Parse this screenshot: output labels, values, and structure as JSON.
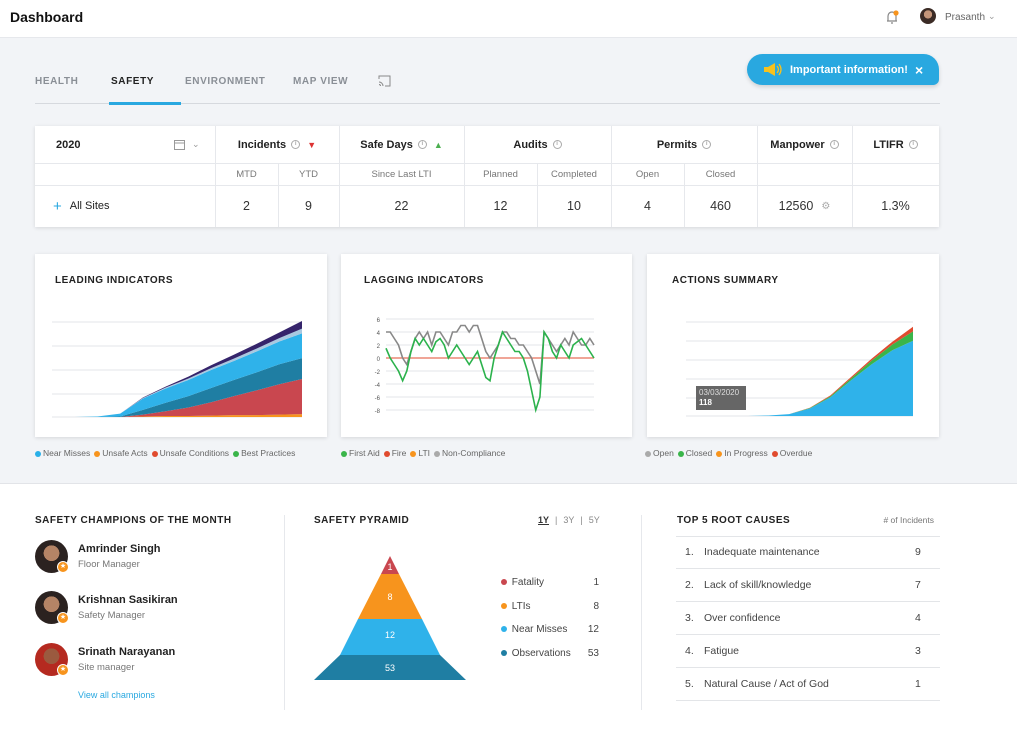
{
  "header": {
    "title": "Dashboard",
    "user": "Prasanth",
    "bell_icon": "bell-icon",
    "notification_color": "#f7941d"
  },
  "tabs": [
    {
      "label": "HEALTH"
    },
    {
      "label": "SAFETY",
      "active": true
    },
    {
      "label": "ENVIRONMENT"
    },
    {
      "label": "MAP VIEW"
    }
  ],
  "banner": {
    "text": "Important information!",
    "close": "×",
    "color": "#29a8e0"
  },
  "stats": {
    "year": "2020",
    "headers": {
      "incidents": "Incidents",
      "safe_days": "Safe Days",
      "audits": "Audits",
      "permits": "Permits",
      "manpower": "Manpower",
      "ltifr": "LTIFR"
    },
    "subheaders": {
      "mtd": "MTD",
      "ytd": "YTD",
      "since": "Since Last LTI",
      "planned": "Planned",
      "completed": "Completed",
      "open": "Open",
      "closed": "Closed"
    },
    "row": {
      "label": "All Sites",
      "mtd": "2",
      "ytd": "9",
      "safe_days": "22",
      "planned": "12",
      "completed": "10",
      "open": "4",
      "closed": "460",
      "manpower": "12560",
      "ltifr": "1.3%"
    }
  },
  "charts": {
    "leading": {
      "title": "LEADING INDICATORS",
      "legend": [
        {
          "label": "Near Misses",
          "color": "#29b0e8"
        },
        {
          "label": "Unsafe Acts",
          "color": "#f7941d"
        },
        {
          "label": "Unsafe Conditions",
          "color": "#e04b2f"
        },
        {
          "label": "Best Practices",
          "color": "#3ab54a"
        }
      ]
    },
    "lagging": {
      "title": "LAGGING INDICATORS",
      "legend": [
        {
          "label": "First Aid",
          "color": "#3ab54a"
        },
        {
          "label": "Fire",
          "color": "#e04b2f"
        },
        {
          "label": "LTI",
          "color": "#f7941d"
        },
        {
          "label": "Non-Compliance",
          "color": "#aaaaaa"
        }
      ]
    },
    "actions": {
      "title": "ACTIONS SUMMARY",
      "tooltip_date": "03/03/2020",
      "tooltip_value": "118",
      "legend": [
        {
          "label": "Open",
          "color": "#aaaaaa"
        },
        {
          "label": "Closed",
          "color": "#3ab54a"
        },
        {
          "label": "In Progress",
          "color": "#f7941d"
        },
        {
          "label": "Overdue",
          "color": "#e04b2f"
        }
      ]
    }
  },
  "chart_data": [
    {
      "type": "area",
      "stacked": true,
      "ylim": [
        0,
        100
      ],
      "x": [
        1,
        2,
        3,
        4,
        5,
        6,
        7,
        8,
        9,
        10,
        11,
        12
      ],
      "series": [
        {
          "color": "#f7941d",
          "values": [
            0,
            0,
            0,
            0,
            0.5,
            1,
            1,
            1.5,
            2,
            2,
            2.5,
            3
          ]
        },
        {
          "color": "#c9474f",
          "values": [
            0,
            0,
            0,
            0,
            2,
            5,
            9,
            14,
            20,
            26,
            32,
            37
          ]
        },
        {
          "color": "#1f7ea3",
          "values": [
            0,
            0,
            0,
            0.5,
            5,
            9,
            12,
            15,
            17,
            19,
            21,
            22
          ]
        },
        {
          "color": "#2fb2ea",
          "values": [
            0,
            0,
            0.5,
            3,
            12,
            15,
            17,
            19,
            20,
            22,
            24,
            26
          ]
        },
        {
          "color": "#a9c8e0",
          "values": [
            0,
            0,
            0,
            0,
            0.5,
            1,
            1.5,
            2,
            2.5,
            3,
            3.5,
            5
          ]
        },
        {
          "color": "#35246b",
          "values": [
            0,
            0,
            0,
            0,
            0.5,
            1,
            2,
            3,
            4,
            5,
            6,
            8
          ]
        }
      ]
    },
    {
      "type": "line",
      "ylim": [
        -8,
        6
      ],
      "yticks": [
        "6",
        "4",
        "2",
        "0",
        "-2",
        "-4",
        "-6",
        "-8"
      ],
      "series": [
        {
          "color": "#888888",
          "values": [
            4,
            4,
            3,
            2,
            0,
            -1,
            1,
            3,
            4,
            3,
            4,
            2,
            4,
            4,
            3,
            2,
            4,
            4,
            5,
            5,
            4,
            5,
            5,
            3,
            1,
            0,
            1,
            2,
            4,
            4,
            3,
            3,
            2,
            2,
            1,
            0,
            -2,
            -4,
            4,
            3,
            2,
            1,
            2,
            3,
            2,
            4,
            3,
            2,
            2,
            3,
            2
          ]
        },
        {
          "color": "#2bb24c",
          "values": [
            1.5,
            0,
            -1,
            -2,
            -3.5,
            -2,
            1,
            3,
            2,
            3,
            2,
            1,
            2.5,
            3,
            2,
            0,
            1,
            2,
            1,
            0,
            -1,
            0,
            1,
            -1,
            -3,
            -3.5,
            0,
            2,
            4,
            3,
            2,
            1,
            1,
            0,
            -2,
            -5,
            -8,
            -6,
            4,
            3,
            1,
            0,
            2,
            1,
            0,
            2,
            2.5,
            3,
            2,
            1,
            0
          ]
        }
      ],
      "reference_line": {
        "value": 0,
        "color": "#e04b2f"
      }
    },
    {
      "type": "area",
      "stacked": true,
      "ylim": [
        0,
        100
      ],
      "x": [
        1,
        2,
        3,
        4,
        5,
        6,
        7,
        8,
        9,
        10,
        11,
        12
      ],
      "series": [
        {
          "color": "#2fb2ea",
          "values": [
            0,
            0,
            0,
            0,
            0.5,
            2,
            8,
            20,
            38,
            55,
            70,
            80
          ]
        },
        {
          "color": "#3ab54a",
          "values": [
            0,
            0,
            0,
            0,
            0,
            0,
            0.5,
            1,
            2,
            4,
            6,
            10
          ]
        },
        {
          "color": "#e04b2f",
          "values": [
            0,
            0,
            0,
            0,
            0,
            0,
            0.3,
            1,
            1.5,
            2,
            3,
            5
          ]
        }
      ]
    }
  ],
  "champions": {
    "title": "SAFETY CHAMPIONS OF THE MONTH",
    "people": [
      {
        "name": "Amrinder Singh",
        "role": "Floor Manager"
      },
      {
        "name": "Krishnan Sasikiran",
        "role": "Safety Manager"
      },
      {
        "name": "Srinath Narayanan",
        "role": "Site manager"
      }
    ],
    "link": "View all champions"
  },
  "pyramid": {
    "title": "SAFETY PYRAMID",
    "periods": [
      "1Y",
      "3Y",
      "5Y"
    ],
    "levels": [
      {
        "label": "Fatality",
        "value": "1",
        "color": "#c9474f"
      },
      {
        "label": "LTIs",
        "value": "8",
        "color": "#f7941d"
      },
      {
        "label": "Near Misses",
        "value": "12",
        "color": "#2fb2ea"
      },
      {
        "label": "Observations",
        "value": "53",
        "color": "#1f7ea3"
      }
    ]
  },
  "root_causes": {
    "title": "TOP 5 ROOT CAUSES",
    "column": "# of Incidents",
    "items": [
      {
        "n": "1.",
        "label": "Inadequate maintenance",
        "value": "9"
      },
      {
        "n": "2.",
        "label": "Lack of skill/knowledge",
        "value": "7"
      },
      {
        "n": "3.",
        "label": "Over confidence",
        "value": "4"
      },
      {
        "n": "4.",
        "label": "Fatigue",
        "value": "3"
      },
      {
        "n": "5.",
        "label": "Natural Cause / Act of God",
        "value": "1"
      }
    ]
  }
}
